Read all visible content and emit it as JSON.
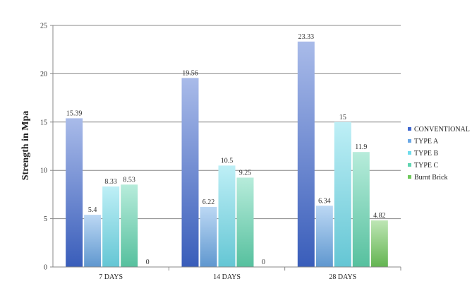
{
  "chart_data": {
    "type": "bar",
    "title": "",
    "xlabel": "",
    "ylabel": "Strength in Mpa",
    "ylim": [
      0,
      25
    ],
    "yticks": [
      0,
      5,
      10,
      15,
      20,
      25
    ],
    "grid": true,
    "legend_position": "right",
    "categories": [
      "7 DAYS",
      "14 DAYS",
      "28 DAYS"
    ],
    "series": [
      {
        "name": "CONVENTIONAL",
        "values": [
          15.39,
          19.56,
          23.33
        ],
        "labels": [
          "15.39",
          "19.56",
          "23.33"
        ],
        "color": "#3f67cf"
      },
      {
        "name": "TYPE A",
        "values": [
          5.4,
          6.22,
          6.34
        ],
        "labels": [
          "5.4",
          "6.22",
          "6.34"
        ],
        "color": "#6aa8e6"
      },
      {
        "name": "TYPE B",
        "values": [
          8.33,
          10.5,
          15
        ],
        "labels": [
          "8.33",
          "10.5",
          "15"
        ],
        "color": "#6fdcec"
      },
      {
        "name": "TYPE C",
        "values": [
          8.53,
          9.25,
          11.9
        ],
        "labels": [
          "8.53",
          "9.25",
          "11.9"
        ],
        "color": "#5fd5b0"
      },
      {
        "name": "Burnt Brick",
        "values": [
          0,
          0,
          4.82
        ],
        "labels": [
          "0",
          "0",
          "4.82"
        ],
        "color": "#6ec85a"
      }
    ]
  }
}
